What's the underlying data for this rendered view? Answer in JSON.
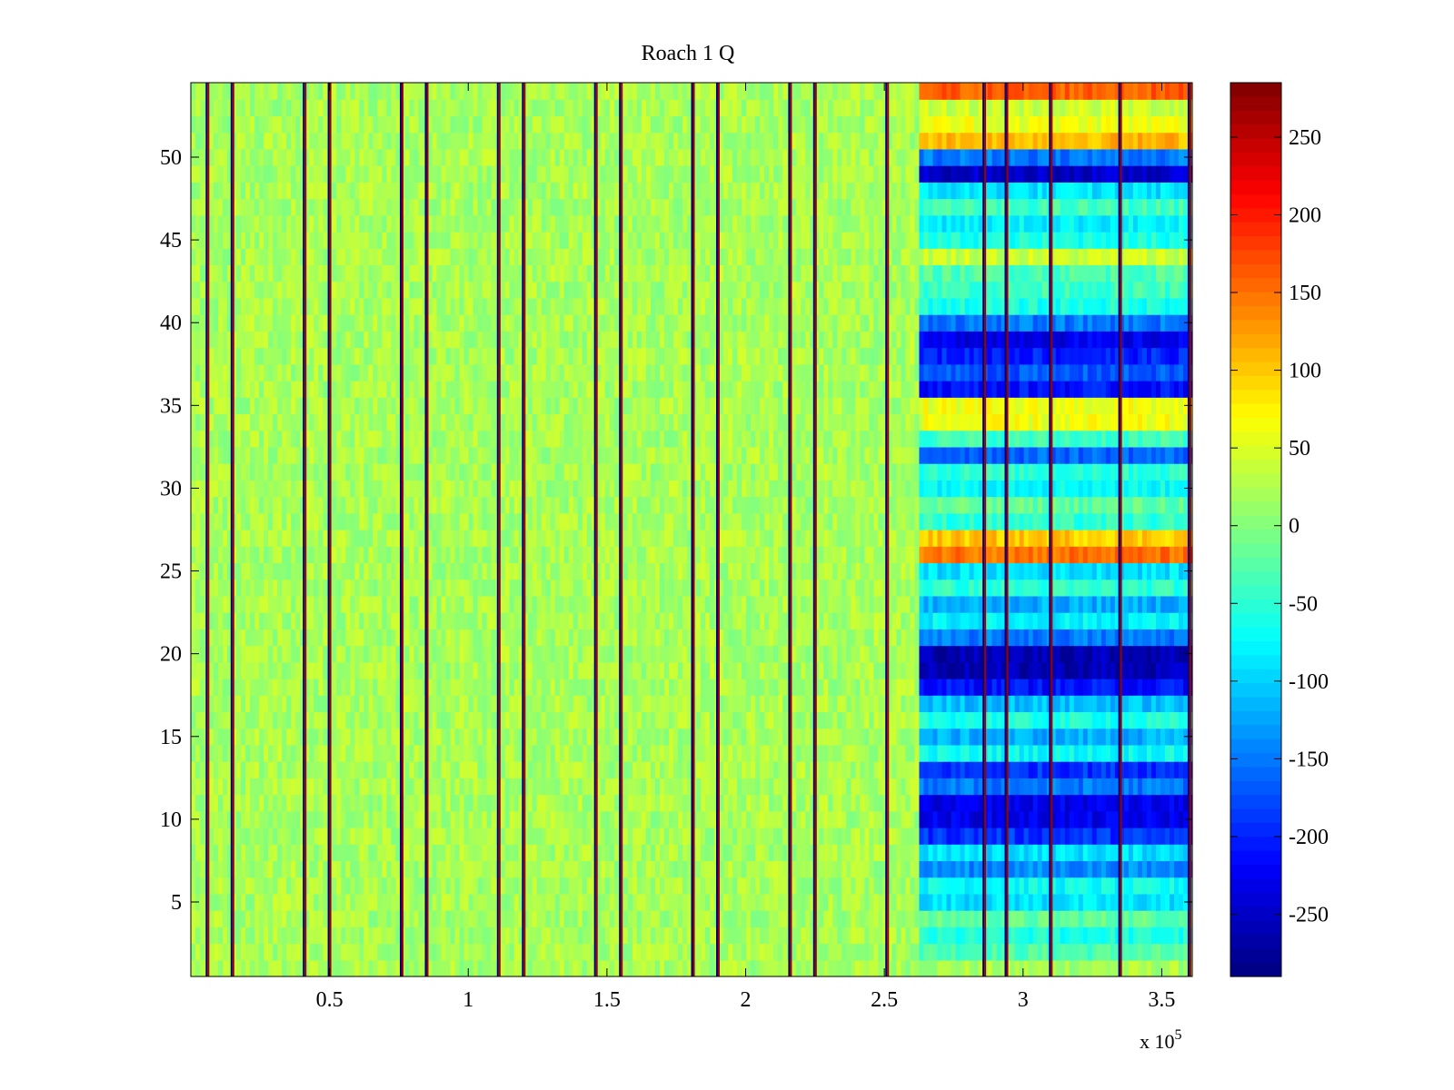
{
  "chart_data": {
    "type": "heatmap",
    "title": "Roach 1 Q",
    "xlabel": "",
    "ylabel": "",
    "x_multiplier_label": "x 10",
    "x_multiplier_exp": "5",
    "xlim": [
      0,
      3.61
    ],
    "ylim": [
      0.5,
      54.5
    ],
    "xticks": [
      0.5,
      1,
      1.5,
      2,
      2.5,
      3,
      3.5
    ],
    "xtick_labels": [
      "0.5",
      "1",
      "1.5",
      "2",
      "2.5",
      "3",
      "3.5"
    ],
    "yticks": [
      5,
      10,
      15,
      20,
      25,
      30,
      35,
      40,
      45,
      50
    ],
    "ytick_labels": [
      "5",
      "10",
      "15",
      "20",
      "25",
      "30",
      "35",
      "40",
      "45",
      "50"
    ],
    "rows": 54,
    "colormap": "jet",
    "clim": [
      -290,
      285
    ],
    "colorbar_ticks": [
      250,
      200,
      150,
      100,
      50,
      0,
      -50,
      -100,
      -150,
      -200,
      -250
    ],
    "colorbar_tick_labels": [
      "250",
      "200",
      "150",
      "100",
      "50",
      "0",
      "-50",
      "-100",
      "-150",
      "-200",
      "-250"
    ],
    "stable_region": {
      "x_end": 2.62,
      "typical_value": 20
    },
    "spike_columns_x": [
      0.06,
      0.15,
      0.41,
      0.5,
      0.76,
      0.85,
      1.11,
      1.2,
      1.46,
      1.55,
      1.81,
      1.9,
      2.16,
      2.25,
      2.51,
      2.86,
      2.94,
      3.1,
      3.35,
      3.6
    ],
    "row_levels_after_shift": [
      20,
      -30,
      -60,
      -20,
      -90,
      -70,
      -140,
      -90,
      -190,
      -230,
      -230,
      -150,
      -190,
      -70,
      -120,
      -60,
      -110,
      -210,
      -260,
      -260,
      -150,
      -80,
      -120,
      -50,
      -90,
      150,
      100,
      -50,
      -20,
      -70,
      -50,
      -160,
      -40,
      60,
      60,
      -210,
      -170,
      -200,
      -230,
      -150,
      -60,
      -40,
      -30,
      40,
      -60,
      -80,
      -40,
      -90,
      -250,
      -150,
      110,
      60,
      40,
      160
    ]
  }
}
